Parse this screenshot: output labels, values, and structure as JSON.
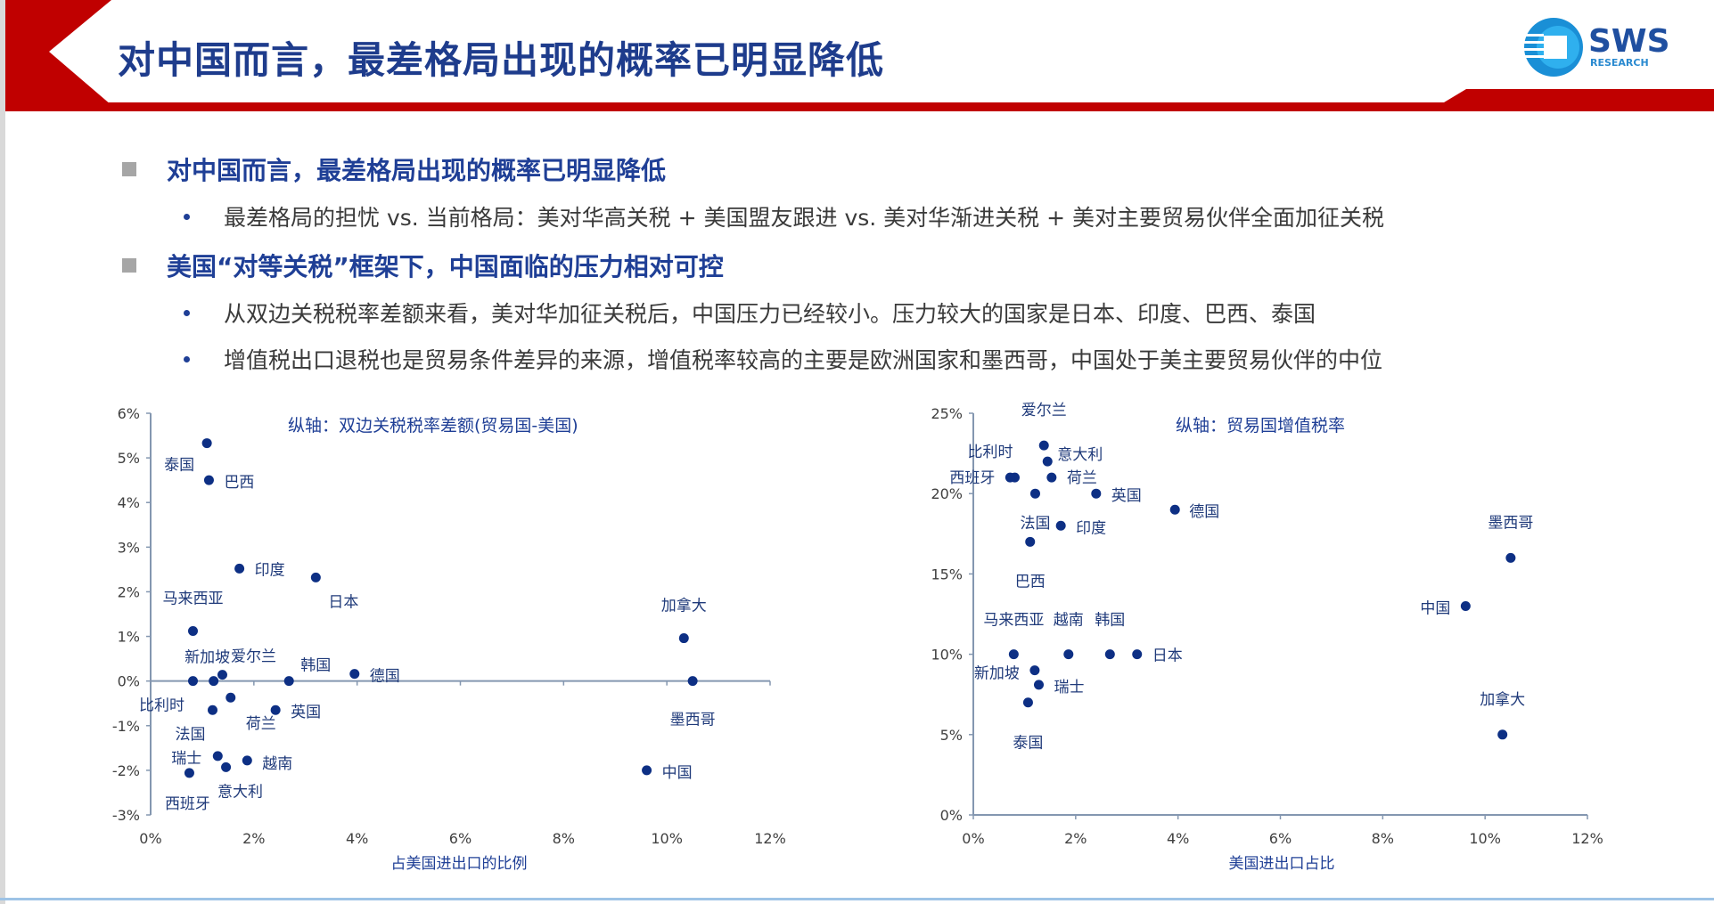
{
  "header": {
    "title": "对中国而言，最差格局出现的概率已明显降低",
    "logo": {
      "text": "SWS",
      "subtext": "RESEARCH"
    },
    "colors": {
      "accent_red": "#c00000",
      "title_blue": "#1e3c8c"
    }
  },
  "bullets": [
    {
      "level": 1,
      "text": "对中国而言，最差格局出现的概率已明显降低"
    },
    {
      "level": 2,
      "text": "最差格局的担忧 vs. 当前格局：美对华高关税 + 美国盟友跟进 vs. 美对华渐进关税 + 美对主要贸易伙伴全面加征关税"
    },
    {
      "level": 1,
      "text": "美国“对等关税”框架下，中国面临的压力相对可控"
    },
    {
      "level": 2,
      "text": "从双边关税税率差额来看，美对华加征关税后，中国压力已经较小。压力较大的国家是日本、印度、巴西、泰国"
    },
    {
      "level": 2,
      "text": "增值税出口退税也是贸易条件差异的来源，增值税率较高的主要是欧洲国家和墨西哥，中国处于美主要贸易伙伴的中位"
    }
  ],
  "chart_data": [
    {
      "type": "scatter",
      "title": "纵轴：双边关税税率差额(贸易国-美国)",
      "xlabel": "占美国进出口的比例",
      "ylabel": "",
      "xlim": [
        0,
        12
      ],
      "ylim": [
        -3,
        6
      ],
      "xticks": [
        "0%",
        "2%",
        "4%",
        "6%",
        "8%",
        "10%",
        "12%"
      ],
      "yticks": [
        "-3%",
        "-2%",
        "-1%",
        "0%",
        "1%",
        "2%",
        "3%",
        "4%",
        "5%",
        "6%"
      ],
      "point_color": "#0d2f84",
      "points": [
        {
          "label": "泰国",
          "x": 1.09,
          "y": 5.33
        },
        {
          "label": "巴西",
          "x": 1.13,
          "y": 4.5
        },
        {
          "label": "印度",
          "x": 1.72,
          "y": 2.52
        },
        {
          "label": "日本",
          "x": 3.2,
          "y": 2.32
        },
        {
          "label": "马来西亚",
          "x": 0.82,
          "y": 1.12
        },
        {
          "label": "加拿大",
          "x": 10.33,
          "y": 0.96
        },
        {
          "label": "新加坡",
          "x": 1.22,
          "y": 0.0
        },
        {
          "label": "比利时",
          "x": 0.82,
          "y": 0.0
        },
        {
          "label": "爱尔兰",
          "x": 1.39,
          "y": 0.14
        },
        {
          "label": "荷兰",
          "x": 1.55,
          "y": -0.37
        },
        {
          "label": "法国",
          "x": 1.2,
          "y": -0.65
        },
        {
          "label": "英国",
          "x": 2.42,
          "y": -0.65
        },
        {
          "label": "韩国",
          "x": 2.68,
          "y": 0.0
        },
        {
          "label": "德国",
          "x": 3.95,
          "y": 0.16
        },
        {
          "label": "墨西哥",
          "x": 10.5,
          "y": 0.0
        },
        {
          "label": "瑞士",
          "x": 1.3,
          "y": -1.68
        },
        {
          "label": "越南",
          "x": 1.87,
          "y": -1.78
        },
        {
          "label": "意大利",
          "x": 1.46,
          "y": -1.93
        },
        {
          "label": "西班牙",
          "x": 0.75,
          "y": -2.06
        },
        {
          "label": "中国",
          "x": 9.61,
          "y": -2.0
        }
      ]
    },
    {
      "type": "scatter",
      "title": "纵轴：贸易国增值税率",
      "xlabel": "美国进出口占比",
      "ylabel": "",
      "xlim": [
        0,
        12
      ],
      "ylim": [
        0,
        25
      ],
      "xticks": [
        "0%",
        "2%",
        "4%",
        "6%",
        "8%",
        "10%",
        "12%"
      ],
      "yticks": [
        "0%",
        "5%",
        "10%",
        "15%",
        "20%",
        "25%"
      ],
      "point_color": "#0d2f84",
      "points": [
        {
          "label": "爱尔兰",
          "x": 1.38,
          "y": 23
        },
        {
          "label": "意大利",
          "x": 1.45,
          "y": 22
        },
        {
          "label": "比利时",
          "x": 0.81,
          "y": 21
        },
        {
          "label": "西班牙",
          "x": 0.72,
          "y": 21
        },
        {
          "label": "荷兰",
          "x": 1.53,
          "y": 21
        },
        {
          "label": "法国",
          "x": 1.21,
          "y": 20
        },
        {
          "label": "英国",
          "x": 2.4,
          "y": 20
        },
        {
          "label": "德国",
          "x": 3.94,
          "y": 19
        },
        {
          "label": "印度",
          "x": 1.71,
          "y": 18
        },
        {
          "label": "巴西",
          "x": 1.11,
          "y": 17
        },
        {
          "label": "墨西哥",
          "x": 10.5,
          "y": 16
        },
        {
          "label": "中国",
          "x": 9.62,
          "y": 13
        },
        {
          "label": "马来西亚",
          "x": 0.79,
          "y": 10
        },
        {
          "label": "越南",
          "x": 1.86,
          "y": 10
        },
        {
          "label": "韩国",
          "x": 2.67,
          "y": 10
        },
        {
          "label": "日本",
          "x": 3.2,
          "y": 10
        },
        {
          "label": "新加坡",
          "x": 1.2,
          "y": 9
        },
        {
          "label": "瑞士",
          "x": 1.28,
          "y": 8.1
        },
        {
          "label": "泰国",
          "x": 1.07,
          "y": 7
        },
        {
          "label": "加拿大",
          "x": 10.34,
          "y": 5
        }
      ]
    }
  ]
}
